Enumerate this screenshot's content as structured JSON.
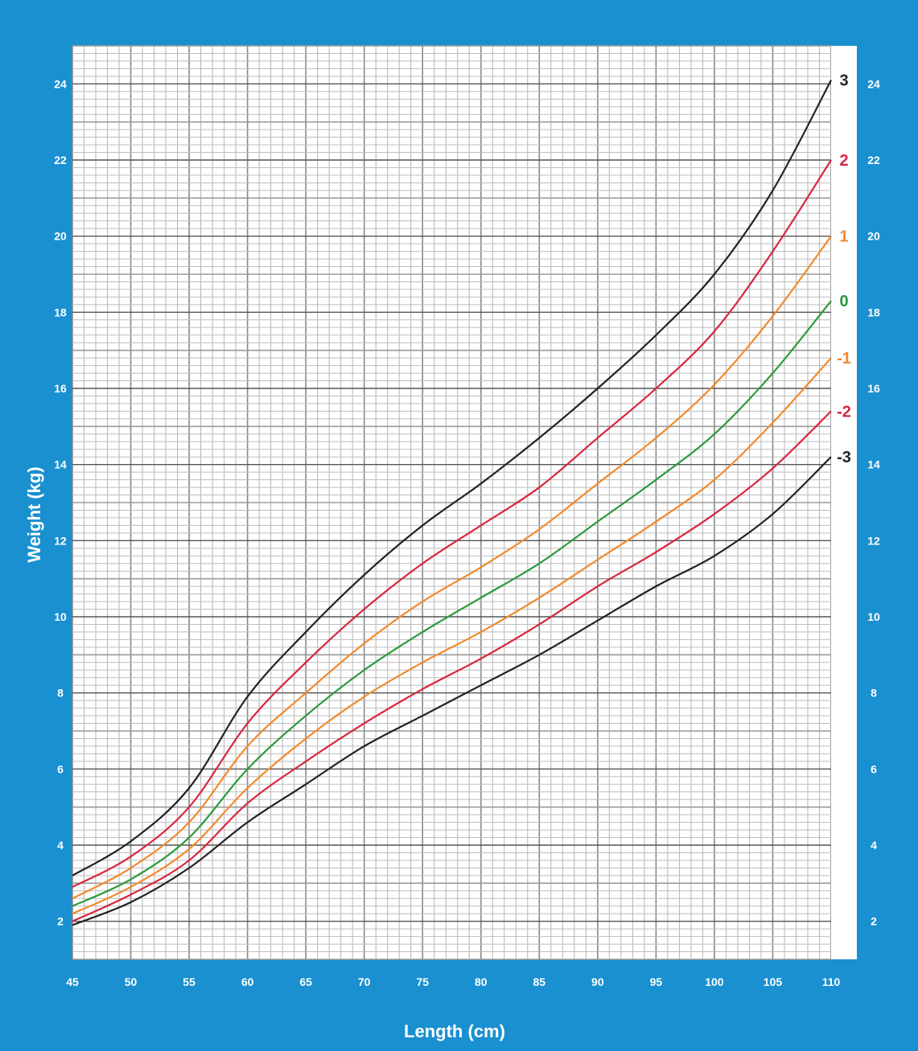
{
  "chart_data": {
    "type": "line",
    "title": "",
    "xlabel": "Length (cm)",
    "ylabel": "Weight (kg)",
    "xlim": [
      45,
      110
    ],
    "ylim": [
      1,
      25
    ],
    "grid": true,
    "x_ticks": [
      "45",
      "50",
      "55",
      "60",
      "65",
      "70",
      "75",
      "80",
      "85",
      "90",
      "95",
      "100",
      "105",
      "110"
    ],
    "y_ticks": [
      "2",
      "4",
      "6",
      "8",
      "10",
      "12",
      "14",
      "16",
      "18",
      "20",
      "22",
      "24"
    ],
    "series": [
      {
        "name": "3",
        "color": "#222222",
        "points": [
          [
            45,
            3.2
          ],
          [
            50,
            4.1
          ],
          [
            55,
            5.5
          ],
          [
            60,
            7.9
          ],
          [
            65,
            9.6
          ],
          [
            70,
            11.1
          ],
          [
            75,
            12.4
          ],
          [
            80,
            13.5
          ],
          [
            85,
            14.7
          ],
          [
            90,
            16.0
          ],
          [
            95,
            17.4
          ],
          [
            100,
            19.0
          ],
          [
            105,
            21.2
          ],
          [
            110,
            24.1
          ]
        ]
      },
      {
        "name": "2",
        "color": "#d8263f",
        "points": [
          [
            45,
            2.9
          ],
          [
            50,
            3.7
          ],
          [
            55,
            5.0
          ],
          [
            60,
            7.2
          ],
          [
            65,
            8.8
          ],
          [
            70,
            10.2
          ],
          [
            75,
            11.4
          ],
          [
            80,
            12.4
          ],
          [
            85,
            13.4
          ],
          [
            90,
            14.7
          ],
          [
            95,
            16.0
          ],
          [
            100,
            17.5
          ],
          [
            105,
            19.6
          ],
          [
            110,
            22.0
          ]
        ]
      },
      {
        "name": "1",
        "color": "#f28a2e",
        "points": [
          [
            45,
            2.6
          ],
          [
            50,
            3.4
          ],
          [
            55,
            4.6
          ],
          [
            60,
            6.6
          ],
          [
            65,
            8.0
          ],
          [
            70,
            9.3
          ],
          [
            75,
            10.4
          ],
          [
            80,
            11.3
          ],
          [
            85,
            12.3
          ],
          [
            90,
            13.5
          ],
          [
            95,
            14.7
          ],
          [
            100,
            16.1
          ],
          [
            105,
            17.9
          ],
          [
            110,
            20.0
          ]
        ]
      },
      {
        "name": "0",
        "color": "#2c9a3c",
        "points": [
          [
            45,
            2.4
          ],
          [
            50,
            3.1
          ],
          [
            55,
            4.2
          ],
          [
            60,
            6.0
          ],
          [
            65,
            7.4
          ],
          [
            70,
            8.6
          ],
          [
            75,
            9.6
          ],
          [
            80,
            10.5
          ],
          [
            85,
            11.4
          ],
          [
            90,
            12.5
          ],
          [
            95,
            13.6
          ],
          [
            100,
            14.8
          ],
          [
            105,
            16.4
          ],
          [
            110,
            18.3
          ]
        ]
      },
      {
        "name": "-1",
        "color": "#f28a2e",
        "points": [
          [
            45,
            2.2
          ],
          [
            50,
            2.9
          ],
          [
            55,
            3.9
          ],
          [
            60,
            5.5
          ],
          [
            65,
            6.8
          ],
          [
            70,
            7.9
          ],
          [
            75,
            8.8
          ],
          [
            80,
            9.6
          ],
          [
            85,
            10.5
          ],
          [
            90,
            11.5
          ],
          [
            95,
            12.5
          ],
          [
            100,
            13.6
          ],
          [
            105,
            15.1
          ],
          [
            110,
            16.8
          ]
        ]
      },
      {
        "name": "-2",
        "color": "#d8263f",
        "points": [
          [
            45,
            2.0
          ],
          [
            50,
            2.7
          ],
          [
            55,
            3.6
          ],
          [
            60,
            5.1
          ],
          [
            65,
            6.2
          ],
          [
            70,
            7.2
          ],
          [
            75,
            8.1
          ],
          [
            80,
            8.9
          ],
          [
            85,
            9.8
          ],
          [
            90,
            10.8
          ],
          [
            95,
            11.7
          ],
          [
            100,
            12.7
          ],
          [
            105,
            13.9
          ],
          [
            110,
            15.4
          ]
        ]
      },
      {
        "name": "-3",
        "color": "#222222",
        "points": [
          [
            45,
            1.9
          ],
          [
            50,
            2.5
          ],
          [
            55,
            3.4
          ],
          [
            60,
            4.6
          ],
          [
            65,
            5.6
          ],
          [
            70,
            6.6
          ],
          [
            75,
            7.4
          ],
          [
            80,
            8.2
          ],
          [
            85,
            9.0
          ],
          [
            90,
            9.9
          ],
          [
            95,
            10.8
          ],
          [
            100,
            11.6
          ],
          [
            105,
            12.7
          ],
          [
            110,
            14.2
          ]
        ]
      }
    ]
  }
}
